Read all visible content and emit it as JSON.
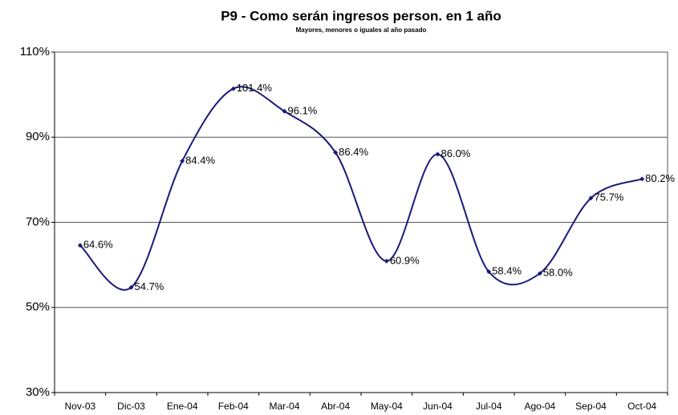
{
  "chart_data": {
    "type": "line",
    "title": "P9 - Como serán ingresos person. en 1 año",
    "subtitle": "Mayores, menores o iguales al año pasado",
    "categories": [
      "Nov-03",
      "Dic-03",
      "Ene-04",
      "Feb-04",
      "Mar-04",
      "Abr-04",
      "May-04",
      "Jun-04",
      "Jul-04",
      "Ago-04",
      "Sep-04",
      "Oct-04"
    ],
    "series": [
      {
        "name": "P9",
        "color": "#1a1a7a",
        "values": [
          64.6,
          54.7,
          84.4,
          101.4,
          96.1,
          86.4,
          60.9,
          86.0,
          58.4,
          58.0,
          75.7,
          80.2
        ],
        "value_labels": [
          "64.6%",
          "54.7%",
          "84.4%",
          "101.4%",
          "96.1%",
          "86.4%",
          "60.9%",
          "86.0%",
          "58.4%",
          "58.0%",
          "75.7%",
          "80.2%"
        ]
      }
    ],
    "ylim": [
      30,
      110
    ],
    "yticks": [
      {
        "value": 30,
        "label": "30%"
      },
      {
        "value": 50,
        "label": "50%"
      },
      {
        "value": 70,
        "label": "70%"
      },
      {
        "value": 90,
        "label": "90%"
      },
      {
        "value": 110,
        "label": "110%"
      }
    ],
    "grid": true,
    "smooth": true
  }
}
